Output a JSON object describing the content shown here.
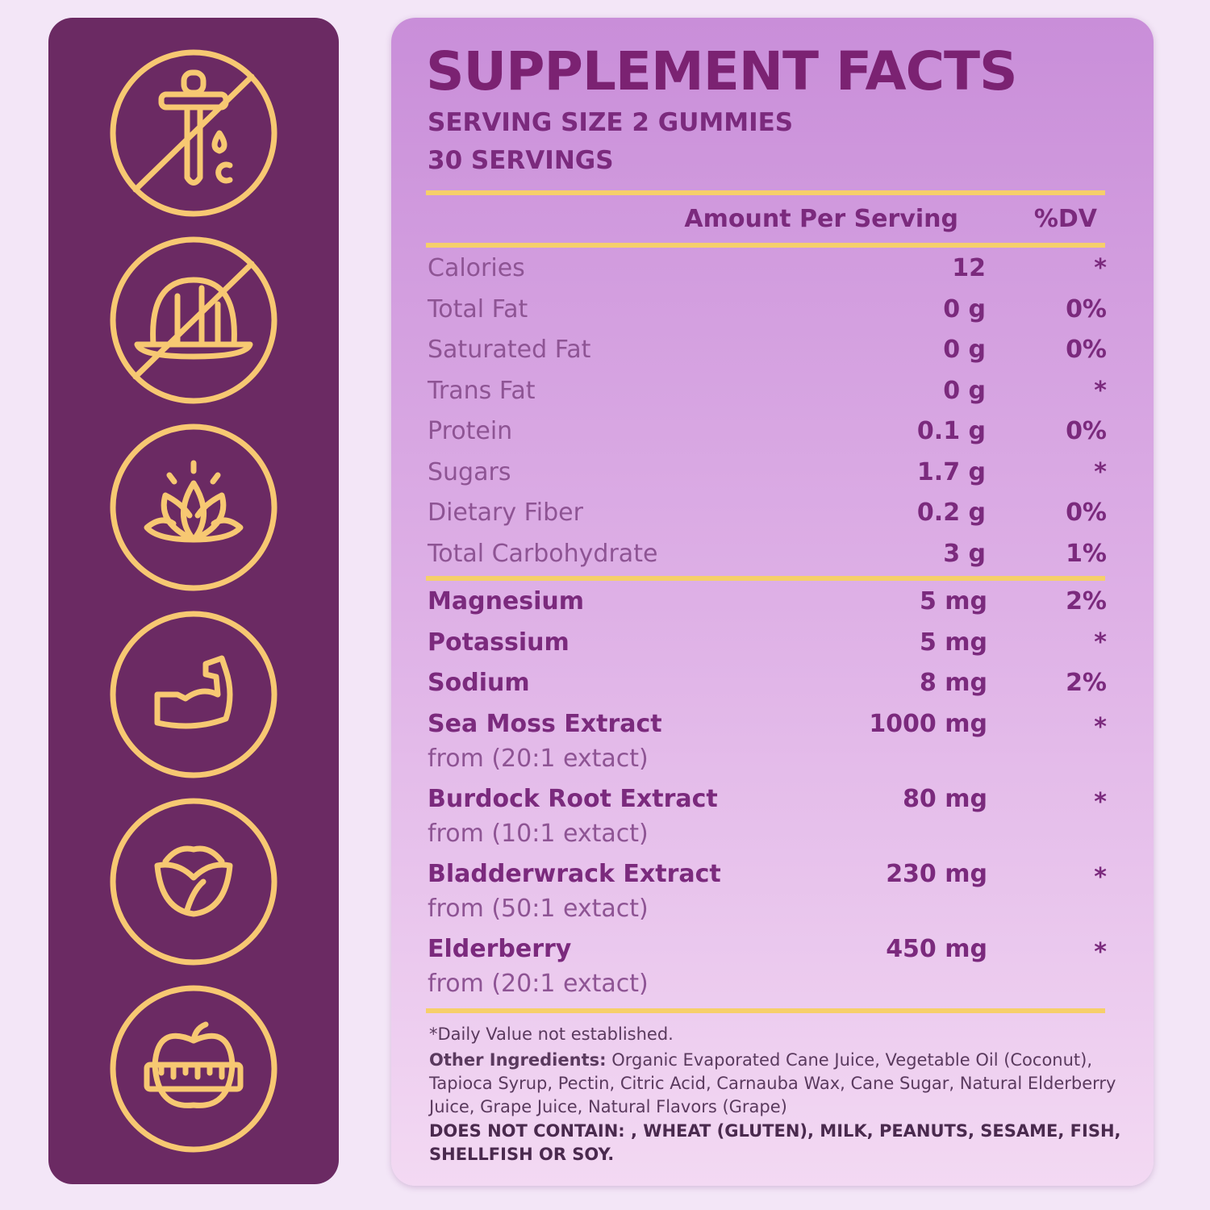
{
  "title": "SUPPLEMENT FACTS",
  "serving_size": "SERVING SIZE 2 GUMMIES",
  "servings": "30 SERVINGS",
  "header": {
    "amount": "Amount Per Serving",
    "dv": "%DV"
  },
  "nutrients": [
    {
      "name": "Calories",
      "amount": "12",
      "dv": "*"
    },
    {
      "name": "Total Fat",
      "amount": "0 g",
      "dv": "0%"
    },
    {
      "name": "Saturated Fat",
      "amount": "0 g",
      "dv": "0%"
    },
    {
      "name": "Trans Fat",
      "amount": "0 g",
      "dv": "*"
    },
    {
      "name": "Protein",
      "amount": "0.1 g",
      "dv": "0%"
    },
    {
      "name": "Sugars",
      "amount": "1.7 g",
      "dv": "*"
    },
    {
      "name": "Dietary Fiber",
      "amount": "0.2 g",
      "dv": "0%"
    },
    {
      "name": "Total Carbohydrate",
      "amount": "3 g",
      "dv": "1%"
    }
  ],
  "ingredients": [
    {
      "name": "Magnesium",
      "amount": "5 mg",
      "dv": "2%"
    },
    {
      "name": "Potassium",
      "amount": "5 mg",
      "dv": "*"
    },
    {
      "name": "Sodium",
      "amount": "8 mg",
      "dv": "2%"
    },
    {
      "name": "Sea Moss Extract",
      "source": "from (20:1 extact)",
      "amount": "1000 mg",
      "dv": "*"
    },
    {
      "name": "Burdock Root Extract",
      "source": "from (10:1 extact)",
      "amount": "80 mg",
      "dv": "*"
    },
    {
      "name": "Bladderwrack Extract",
      "source": "from (50:1 extact)",
      "amount": "230 mg",
      "dv": "*"
    },
    {
      "name": "Elderberry",
      "source": "from (20:1 extact)",
      "amount": "450 mg",
      "dv": "*"
    }
  ],
  "footnote": "*Daily Value not established.",
  "other_ingredients": {
    "label": "Other Ingredients:",
    "text": "Organic Evaporated Cane Juice, Vegetable Oil (Coconut), Tapioca Syrup, Pectin, Citric Acid, Carnauba Wax, Cane Sugar, Natural Elderberry Juice, Grape Juice, Natural Flavors (Grape)"
  },
  "does_not_contain": "DOES NOT CONTAIN: , WHEAT (GLUTEN), MILK, PEANUTS, SESAME, FISH, SHELLFISH OR SOY."
}
